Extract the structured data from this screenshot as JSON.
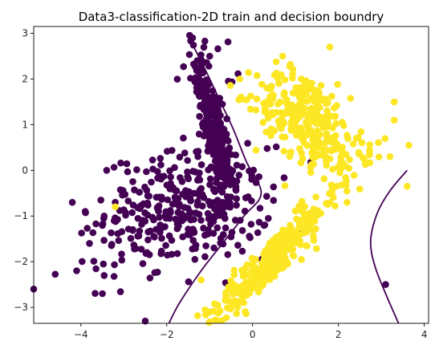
{
  "chart_data": {
    "type": "scatter",
    "title": "Data3-classification-2D train and decision boundry",
    "xlabel": "",
    "ylabel": "",
    "xlim": [
      -5.1,
      4.1
    ],
    "ylim": [
      -3.35,
      3.15
    ],
    "xticks": [
      -4,
      -2,
      0,
      2,
      4
    ],
    "yticks": [
      -3,
      -2,
      -1,
      0,
      1,
      2,
      3
    ],
    "grid": false,
    "legend": "none",
    "series": [
      {
        "color": "#440154",
        "clusters": [
          {
            "cx": -0.9,
            "cy": 0.9,
            "sx": 0.22,
            "sy": 0.75,
            "rho": -0.8,
            "n": 260
          },
          {
            "cx": -1.5,
            "cy": -0.8,
            "sx": 0.95,
            "sy": 0.6,
            "rho": 0.1,
            "n": 330
          },
          {
            "cx": -3.0,
            "cy": -1.6,
            "sx": 0.7,
            "sy": 0.7,
            "rho": 0.0,
            "n": 25
          },
          {
            "cx": -1.0,
            "cy": 2.3,
            "sx": 0.3,
            "sy": 0.35,
            "rho": 0.0,
            "n": 20
          }
        ],
        "outliers": [
          [
            -5.1,
            -2.6
          ],
          [
            -4.2,
            -0.7
          ],
          [
            -3.9,
            -0.9
          ],
          [
            -3.8,
            -1.6
          ],
          [
            -4.1,
            -2.2
          ],
          [
            -3.5,
            -2.7
          ],
          [
            -2.5,
            -3.3
          ],
          [
            -3.2,
            -0.7
          ],
          [
            -3.4,
            0.0
          ],
          [
            -1.4,
            2.9
          ],
          [
            -1.0,
            2.5
          ],
          [
            3.1,
            -2.5
          ]
        ]
      },
      {
        "color": "#fde725",
        "clusters": [
          {
            "cx": 0.4,
            "cy": -2.0,
            "sx": 0.8,
            "sy": 0.8,
            "rho": 0.95,
            "n": 320
          },
          {
            "cx": 1.2,
            "cy": 1.2,
            "sx": 0.55,
            "sy": 0.5,
            "rho": -0.35,
            "n": 270
          },
          {
            "cx": 2.2,
            "cy": 0.4,
            "sx": 0.45,
            "sy": 0.35,
            "rho": 0.0,
            "n": 45
          }
        ],
        "outliers": [
          [
            -3.2,
            -0.8
          ],
          [
            -1.2,
            -2.4
          ],
          [
            -1.0,
            -3.1
          ],
          [
            3.3,
            1.5
          ],
          [
            3.3,
            1.1
          ],
          [
            3.6,
            -0.35
          ],
          [
            2.2,
            -0.7
          ],
          [
            1.8,
            2.7
          ],
          [
            0.7,
            2.5
          ],
          [
            3.2,
            0.3
          ],
          [
            -0.3,
            2.0
          ]
        ]
      }
    ],
    "decision_boundary": [
      [
        [
          -1.45,
          2.85
        ],
        [
          -1.1,
          2.2
        ],
        [
          -0.8,
          1.6
        ],
        [
          -0.45,
          0.9
        ],
        [
          -0.15,
          0.2
        ],
        [
          0.2,
          -0.5
        ],
        [
          -0.2,
          -1.0
        ],
        [
          -0.7,
          -1.6
        ],
        [
          -1.2,
          -2.2
        ],
        [
          -1.7,
          -2.9
        ],
        [
          -1.95,
          -3.35
        ]
      ],
      [
        [
          3.6,
          0.0
        ],
        [
          3.2,
          -0.45
        ],
        [
          2.9,
          -0.95
        ],
        [
          2.75,
          -1.55
        ],
        [
          2.85,
          -2.1
        ],
        [
          3.1,
          -2.7
        ],
        [
          3.4,
          -3.35
        ]
      ]
    ]
  }
}
